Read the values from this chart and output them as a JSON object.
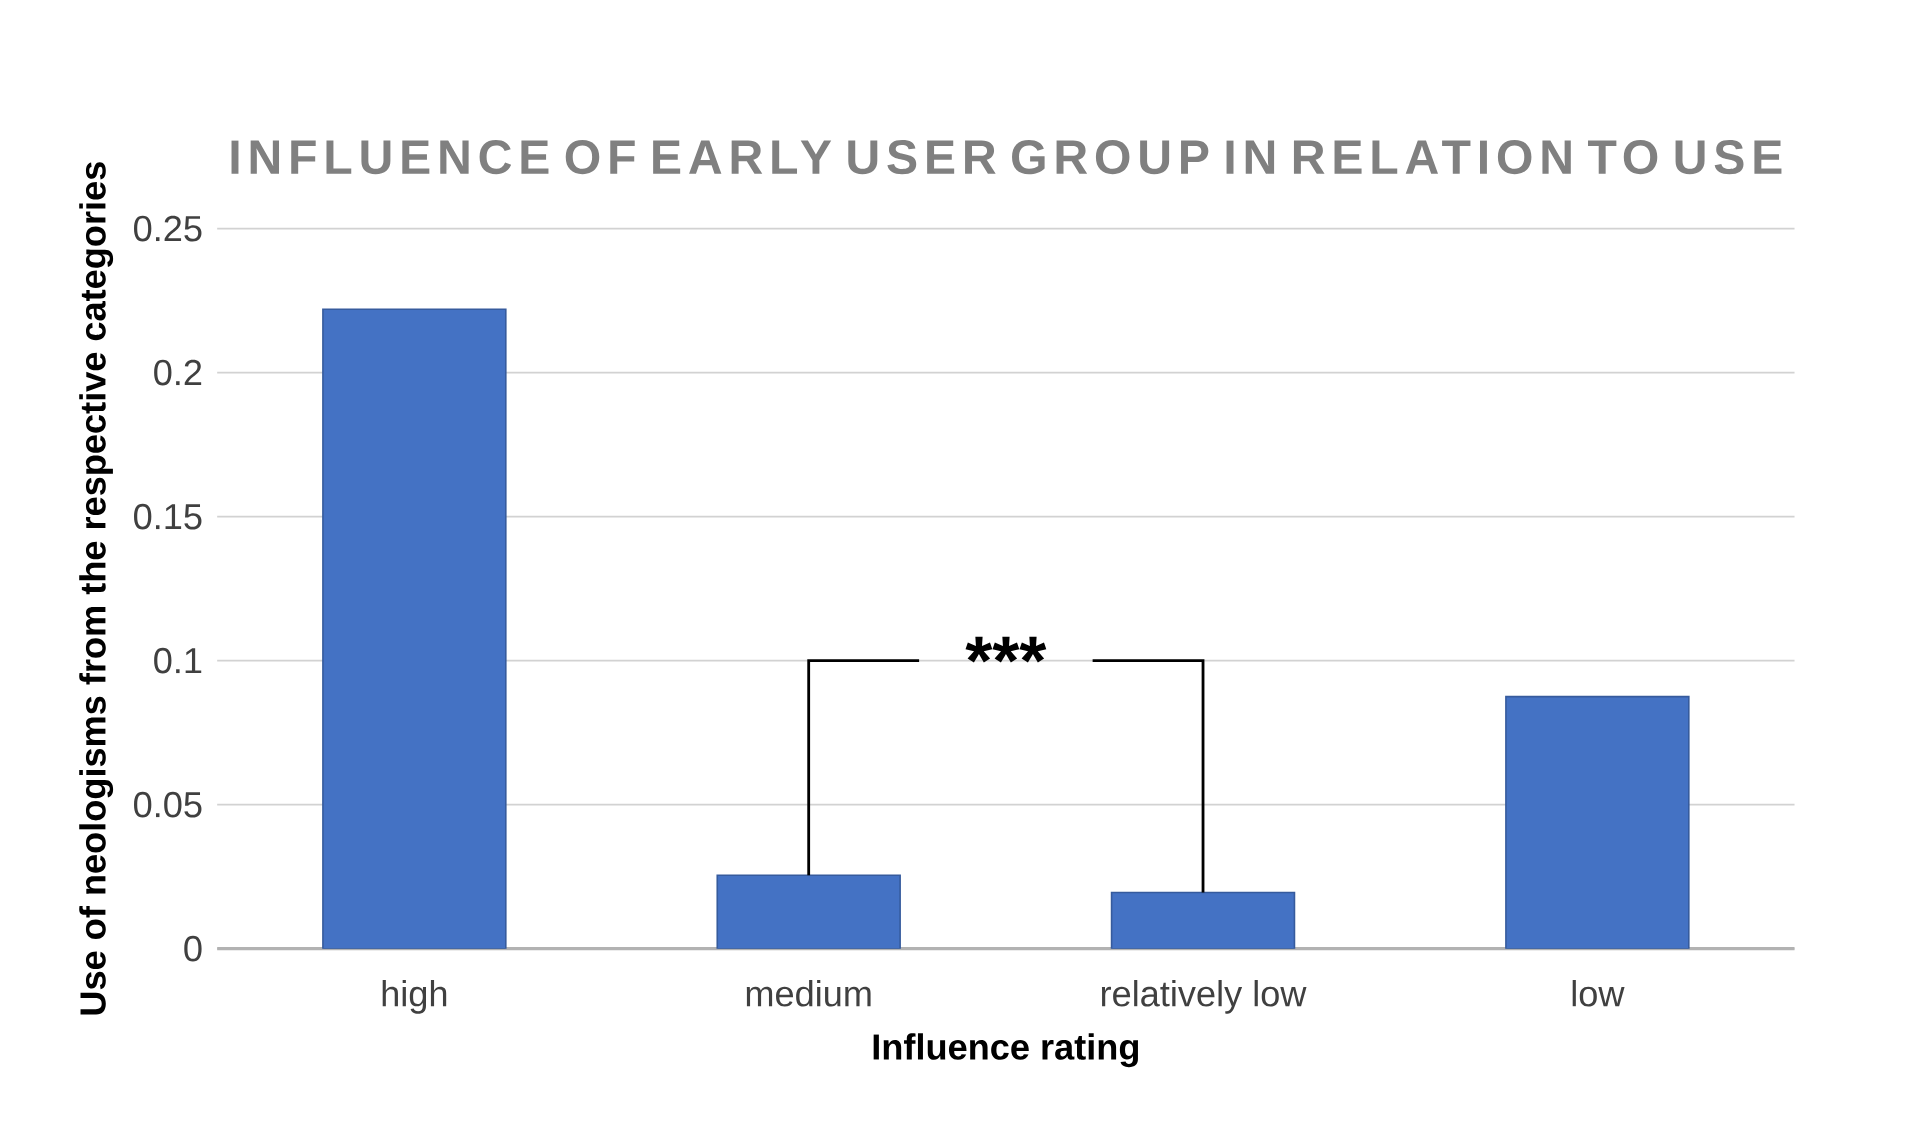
{
  "chart_data": {
    "type": "bar",
    "title": "INFLUENCE OF EARLY USER GROUP IN RELATION TO USE",
    "xlabel": "Influence rating",
    "ylabel": "Use of neologisms from the respective categories",
    "categories": [
      "high",
      "medium",
      "relatively low",
      "low"
    ],
    "values": [
      0.222,
      0.0255,
      0.0195,
      0.0875
    ],
    "color": "#4472c4",
    "ylim": [
      0,
      0.25
    ],
    "yticks": [
      0,
      0.05,
      {
        "value": 0.1,
        "label": "0.1"
      },
      0.15,
      {
        "value": 0.2,
        "label": "0.2"
      },
      0.25
    ],
    "grid": "y",
    "annotations": [
      {
        "text": "***",
        "x": "medium",
        "y": 0.0255
      }
    ]
  }
}
